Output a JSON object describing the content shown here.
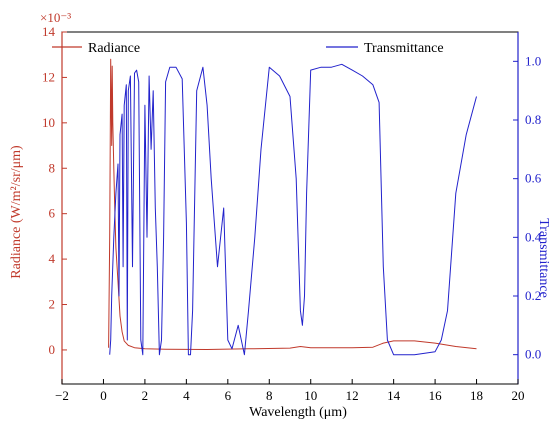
{
  "chart_data": {
    "type": "line",
    "title": "",
    "xlabel": "Wavelength (μm)",
    "ylabel_left": "Radiance (W/m²/sr/μm)",
    "ylabel_right": "Transmittance",
    "left_axis_multiplier": "×10⁻³",
    "xlim": [
      -2,
      20
    ],
    "ylim_left": [
      -1.5,
      14
    ],
    "ylim_right": [
      -0.1,
      1.1
    ],
    "x_ticks": [
      -2,
      0,
      2,
      4,
      6,
      8,
      10,
      12,
      14,
      16,
      18,
      20
    ],
    "y_left_ticks": [
      0,
      2,
      4,
      6,
      8,
      10,
      12,
      14
    ],
    "y_right_ticks": [
      0.0,
      0.2,
      0.4,
      0.6,
      0.8,
      1.0
    ],
    "grid": false,
    "legend": "top",
    "colors": {
      "radiance": "#c0392b",
      "transmittance": "#2222cc"
    },
    "series": [
      {
        "name": "Radiance",
        "axis": "left",
        "x": [
          0.25,
          0.3,
          0.35,
          0.4,
          0.42,
          0.45,
          0.5,
          0.55,
          0.6,
          0.7,
          0.8,
          0.9,
          1.0,
          1.2,
          1.5,
          2,
          3,
          5,
          7,
          9,
          9.5,
          10,
          11,
          12,
          13,
          13.5,
          14,
          15,
          16,
          17,
          18
        ],
        "values": [
          0.1,
          5.0,
          12.8,
          9.0,
          12.5,
          10.0,
          8.0,
          6.0,
          4.5,
          3.0,
          1.5,
          0.8,
          0.4,
          0.2,
          0.1,
          0.05,
          0.03,
          0.02,
          0.05,
          0.08,
          0.15,
          0.1,
          0.1,
          0.1,
          0.12,
          0.3,
          0.4,
          0.4,
          0.3,
          0.15,
          0.05
        ]
      },
      {
        "name": "Transmittance",
        "axis": "right",
        "x": [
          0.3,
          0.35,
          0.4,
          0.5,
          0.6,
          0.7,
          0.75,
          0.8,
          0.9,
          0.95,
          1.0,
          1.1,
          1.15,
          1.2,
          1.3,
          1.4,
          1.5,
          1.6,
          1.7,
          1.8,
          1.9,
          2.0,
          2.1,
          2.2,
          2.3,
          2.4,
          2.5,
          2.6,
          2.7,
          2.8,
          2.9,
          3.0,
          3.2,
          3.5,
          3.8,
          4.0,
          4.1,
          4.2,
          4.3,
          4.5,
          4.8,
          5.0,
          5.2,
          5.5,
          5.8,
          6.0,
          6.2,
          6.5,
          6.8,
          7.0,
          7.3,
          7.6,
          8.0,
          8.5,
          9.0,
          9.3,
          9.5,
          9.6,
          9.7,
          9.8,
          10.0,
          10.5,
          11.0,
          11.5,
          12.0,
          12.5,
          13.0,
          13.3,
          13.5,
          13.7,
          14.0,
          15.0,
          16.0,
          16.3,
          16.6,
          17.0,
          17.5,
          18.0
        ],
        "values": [
          0.0,
          0.05,
          0.2,
          0.4,
          0.55,
          0.65,
          0.2,
          0.75,
          0.82,
          0.3,
          0.85,
          0.92,
          0.05,
          0.9,
          0.95,
          0.3,
          0.96,
          0.97,
          0.93,
          0.05,
          0.0,
          0.85,
          0.4,
          0.95,
          0.7,
          0.9,
          0.5,
          0.3,
          0.0,
          0.05,
          0.4,
          0.93,
          0.98,
          0.98,
          0.94,
          0.45,
          0.0,
          0.0,
          0.15,
          0.9,
          0.98,
          0.85,
          0.6,
          0.3,
          0.5,
          0.05,
          0.02,
          0.1,
          0.0,
          0.15,
          0.4,
          0.7,
          0.98,
          0.95,
          0.88,
          0.6,
          0.15,
          0.1,
          0.2,
          0.55,
          0.97,
          0.98,
          0.98,
          0.99,
          0.97,
          0.95,
          0.92,
          0.86,
          0.3,
          0.05,
          0.0,
          0.0,
          0.01,
          0.05,
          0.15,
          0.55,
          0.75,
          0.88
        ]
      }
    ]
  }
}
